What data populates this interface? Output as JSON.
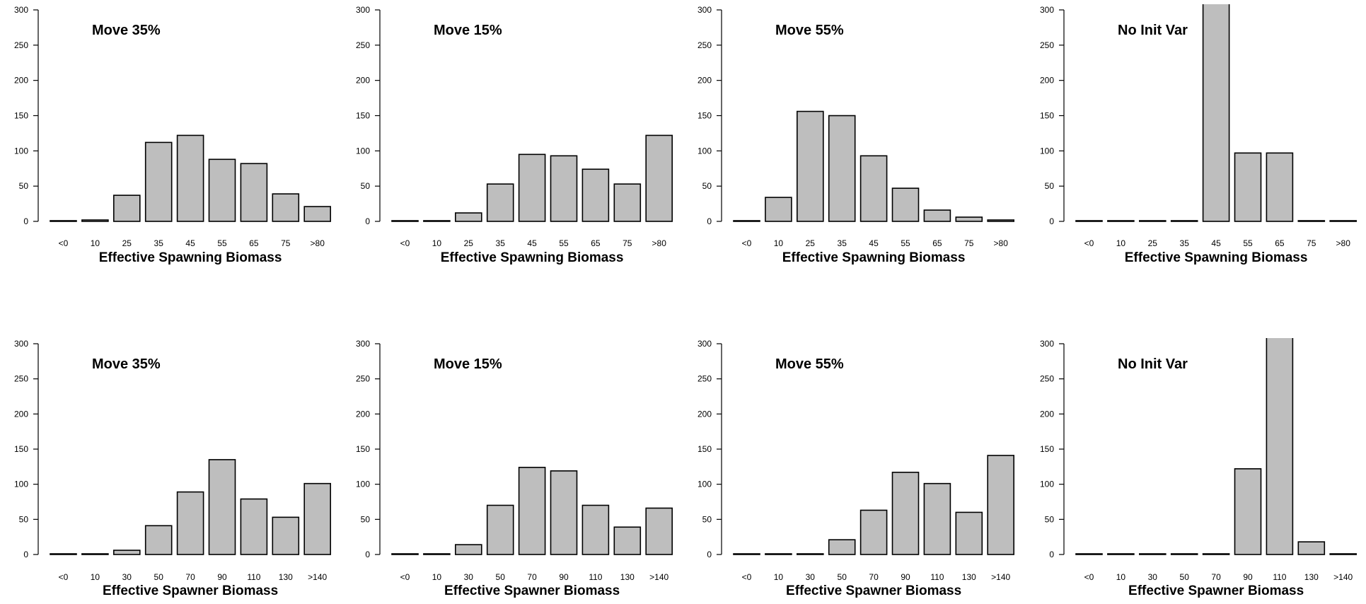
{
  "colors": {
    "bar_fill": "#bebebe",
    "bar_stroke": "#000000",
    "background": "#ffffff"
  },
  "chart_data": [
    {
      "type": "bar",
      "title": "Move 35%",
      "xlabel": "Effective Spawning Biomass",
      "ylabel": "",
      "categories": [
        "<0",
        "10",
        "25",
        "35",
        "45",
        "55",
        "65",
        "75",
        ">80"
      ],
      "values": [
        1,
        2,
        37,
        112,
        122,
        88,
        82,
        39,
        21
      ],
      "ylim": [
        0,
        300
      ],
      "yticks": [
        0,
        50,
        100,
        150,
        200,
        250,
        300
      ],
      "grid": false
    },
    {
      "type": "bar",
      "title": "Move 15%",
      "xlabel": "Effective Spawning Biomass",
      "ylabel": "",
      "categories": [
        "<0",
        "10",
        "25",
        "35",
        "45",
        "55",
        "65",
        "75",
        ">80"
      ],
      "values": [
        1,
        1,
        12,
        53,
        95,
        93,
        74,
        53,
        122
      ],
      "ylim": [
        0,
        300
      ],
      "yticks": [
        0,
        50,
        100,
        150,
        200,
        250,
        300
      ],
      "grid": false
    },
    {
      "type": "bar",
      "title": "Move 55%",
      "xlabel": "Effective Spawning Biomass",
      "ylabel": "",
      "categories": [
        "<0",
        "10",
        "25",
        "35",
        "45",
        "55",
        "65",
        "75",
        ">80"
      ],
      "values": [
        1,
        34,
        156,
        150,
        93,
        47,
        16,
        6,
        2
      ],
      "ylim": [
        0,
        300
      ],
      "yticks": [
        0,
        50,
        100,
        150,
        200,
        250,
        300
      ],
      "grid": false
    },
    {
      "type": "bar",
      "title": "No Init Var",
      "xlabel": "Effective Spawning Biomass",
      "ylabel": "",
      "categories": [
        "<0",
        "10",
        "25",
        "35",
        "45",
        "55",
        "65",
        "75",
        ">80"
      ],
      "values": [
        1,
        1,
        1,
        1,
        310,
        97,
        97,
        1,
        1
      ],
      "ylim": [
        0,
        300
      ],
      "yticks": [
        0,
        50,
        100,
        150,
        200,
        250,
        300
      ],
      "grid": false
    },
    {
      "type": "bar",
      "title": "Move 35%",
      "xlabel": "Effective Spawner Biomass",
      "ylabel": "",
      "categories": [
        "<0",
        "10",
        "30",
        "50",
        "70",
        "90",
        "110",
        "130",
        ">140"
      ],
      "values": [
        1,
        1,
        6,
        41,
        89,
        135,
        79,
        53,
        101
      ],
      "ylim": [
        0,
        300
      ],
      "yticks": [
        0,
        50,
        100,
        150,
        200,
        250,
        300
      ],
      "grid": false
    },
    {
      "type": "bar",
      "title": "Move 15%",
      "xlabel": "Effective Spawner Biomass",
      "ylabel": "",
      "categories": [
        "<0",
        "10",
        "30",
        "50",
        "70",
        "90",
        "110",
        "130",
        ">140"
      ],
      "values": [
        1,
        1,
        14,
        70,
        124,
        119,
        70,
        39,
        66
      ],
      "ylim": [
        0,
        300
      ],
      "yticks": [
        0,
        50,
        100,
        150,
        200,
        250,
        300
      ],
      "grid": false
    },
    {
      "type": "bar",
      "title": "Move 55%",
      "xlabel": "Effective Spawner Biomass",
      "ylabel": "",
      "categories": [
        "<0",
        "10",
        "30",
        "50",
        "70",
        "90",
        "110",
        "130",
        ">140"
      ],
      "values": [
        1,
        1,
        1,
        21,
        63,
        117,
        101,
        60,
        141
      ],
      "ylim": [
        0,
        300
      ],
      "yticks": [
        0,
        50,
        100,
        150,
        200,
        250,
        300
      ],
      "grid": false
    },
    {
      "type": "bar",
      "title": "No Init Var",
      "xlabel": "Effective Spawner Biomass",
      "ylabel": "",
      "categories": [
        "<0",
        "10",
        "30",
        "50",
        "70",
        "90",
        "110",
        "130",
        ">140"
      ],
      "values": [
        1,
        1,
        1,
        1,
        1,
        122,
        322,
        18,
        1
      ],
      "ylim": [
        0,
        300
      ],
      "yticks": [
        0,
        50,
        100,
        150,
        200,
        250,
        300
      ],
      "grid": false
    }
  ]
}
